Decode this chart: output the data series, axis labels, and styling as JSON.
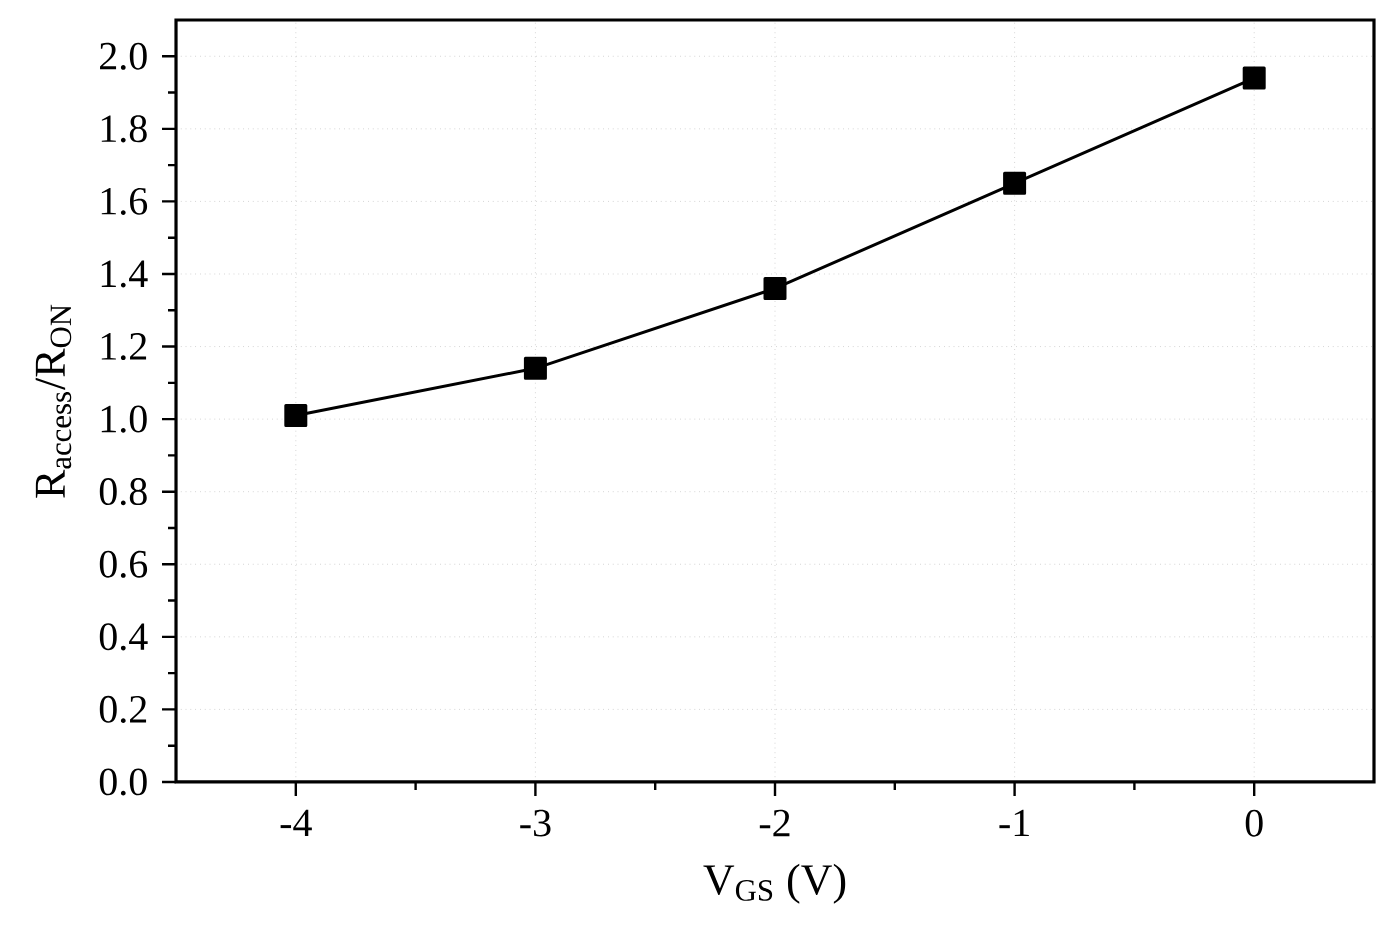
{
  "chart_data": {
    "type": "line",
    "xlabel": "V$_{GS}$ (V)",
    "ylabel": "R$_{access}$/R$_{ON}$",
    "x": [
      -4,
      -3,
      -2,
      -1,
      0
    ],
    "series": [
      {
        "color": "#000000",
        "values": [
          1.01,
          1.14,
          1.36,
          1.65,
          1.94
        ]
      }
    ],
    "marker": "square",
    "line_style": "solid",
    "grid": true,
    "xlim": [
      -4.5,
      0.5
    ],
    "xticks": [
      -4,
      -3,
      -2,
      -1,
      0
    ],
    "ylim": [
      0,
      2.1
    ],
    "yticks": [
      {
        "value": 0,
        "label": "0.0"
      },
      {
        "value": 0.2,
        "label": "0.2"
      },
      {
        "value": 0.4,
        "label": "0.4"
      },
      {
        "value": 0.6,
        "label": "0.6"
      },
      {
        "value": 0.8,
        "label": "0.8"
      },
      {
        "value": 1.0,
        "label": "1.0"
      },
      {
        "value": 1.2,
        "label": "1.2"
      },
      {
        "value": 1.4,
        "label": "1.4"
      },
      {
        "value": 1.6,
        "label": "1.6"
      },
      {
        "value": 1.8,
        "label": "1.8"
      },
      {
        "value": 2.0,
        "label": "2.0"
      }
    ]
  }
}
